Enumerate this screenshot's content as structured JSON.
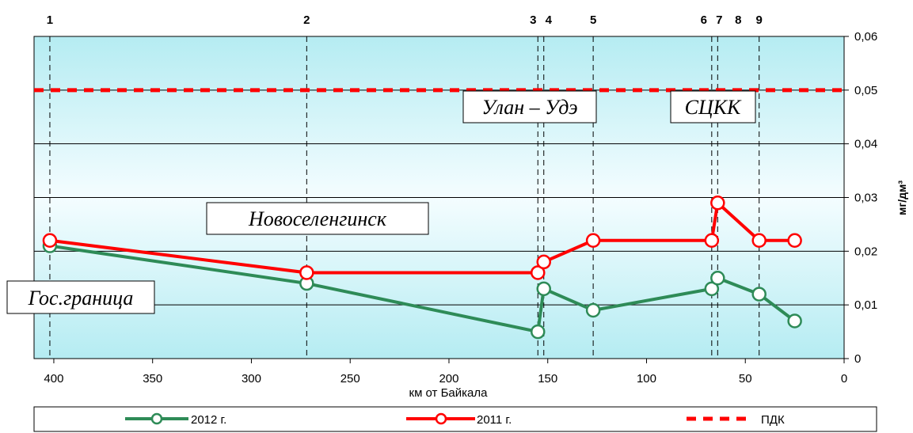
{
  "chart_data": {
    "type": "line",
    "xlabel": "км от Байкала",
    "ylabel": "мг/дм³",
    "xlim": [
      410,
      0
    ],
    "ylim": [
      0,
      0.06
    ],
    "x_ticks": [
      "400",
      "350",
      "300",
      "250",
      "200",
      "150",
      "100",
      "50",
      "0"
    ],
    "y_ticks": [
      "0",
      "0,01",
      "0,02",
      "0,03",
      "0,04",
      "0,05",
      "0,06"
    ],
    "points": [
      {
        "label": "1",
        "x": 402
      },
      {
        "label": "2",
        "x": 272
      },
      {
        "label": "3",
        "x": 155
      },
      {
        "label": "4",
        "x": 152
      },
      {
        "label": "5",
        "x": 127
      },
      {
        "label": "6",
        "x": 67
      },
      {
        "label": "7",
        "x": 64
      },
      {
        "label": "8",
        "x": 64
      },
      {
        "label": "9",
        "x": 43
      }
    ],
    "series": [
      {
        "name": "2012 г.",
        "color": "#2e8b57",
        "x": [
          402,
          272,
          155,
          152,
          127,
          67,
          64,
          43,
          25
        ],
        "y": [
          0.021,
          0.014,
          0.005,
          0.013,
          0.009,
          0.013,
          0.015,
          0.012,
          0.007
        ]
      },
      {
        "name": "2011 г.",
        "color": "#ff0000",
        "x": [
          402,
          272,
          155,
          152,
          127,
          67,
          64,
          43,
          25
        ],
        "y": [
          0.022,
          0.016,
          0.016,
          0.018,
          0.022,
          0.022,
          0.029,
          0.022,
          0.022
        ]
      }
    ],
    "threshold": {
      "name": "ПДК",
      "value": 0.05,
      "color": "#ff0000"
    },
    "annotations": [
      "Гос.граница",
      "Новоселенгинск",
      "Улан – Удэ",
      "СЦКК"
    ],
    "legend_position": "bottom"
  }
}
